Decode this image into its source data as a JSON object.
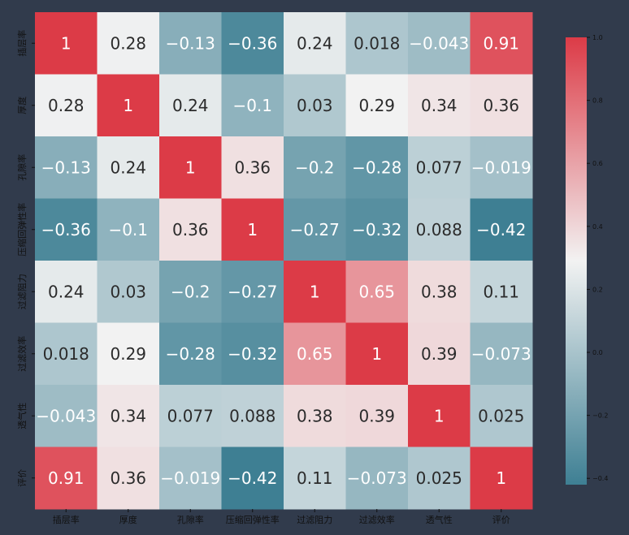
{
  "chart_data": {
    "type": "heatmap",
    "title": "",
    "xlabel": "",
    "ylabel": "",
    "labels": [
      "插层率",
      "厚度",
      "孔隙率",
      "压缩回弹性率",
      "过滤阻力",
      "过滤效率",
      "透气性",
      "评价"
    ],
    "matrix": [
      [
        1,
        0.28,
        -0.13,
        -0.36,
        0.24,
        0.018,
        -0.043,
        0.91
      ],
      [
        0.28,
        1,
        0.24,
        -0.1,
        0.03,
        0.29,
        0.34,
        0.36
      ],
      [
        -0.13,
        0.24,
        1,
        0.36,
        -0.2,
        -0.28,
        0.077,
        -0.019
      ],
      [
        -0.36,
        -0.1,
        0.36,
        1,
        -0.27,
        -0.32,
        0.088,
        -0.42
      ],
      [
        0.24,
        0.03,
        -0.2,
        -0.27,
        1,
        0.65,
        0.38,
        0.11
      ],
      [
        0.018,
        0.29,
        -0.28,
        -0.32,
        0.65,
        1,
        0.39,
        -0.073
      ],
      [
        -0.043,
        0.34,
        0.077,
        0.088,
        0.38,
        0.39,
        1,
        0.025
      ],
      [
        0.91,
        0.36,
        -0.019,
        -0.42,
        0.11,
        -0.073,
        0.025,
        1
      ]
    ],
    "annotation_labels": [
      [
        "1",
        "0.28",
        "−0.13",
        "−0.36",
        "0.24",
        "0.018",
        "−0.043",
        "0.91"
      ],
      [
        "0.28",
        "1",
        "0.24",
        "−0.1",
        "0.03",
        "0.29",
        "0.34",
        "0.36"
      ],
      [
        "−0.13",
        "0.24",
        "1",
        "0.36",
        "−0.2",
        "−0.28",
        "0.077",
        "−0.019"
      ],
      [
        "−0.36",
        "−0.1",
        "0.36",
        "1",
        "−0.27",
        "−0.32",
        "0.088",
        "−0.42"
      ],
      [
        "0.24",
        "0.03",
        "−0.2",
        "−0.27",
        "1",
        "0.65",
        "0.38",
        "0.11"
      ],
      [
        "0.018",
        "0.29",
        "−0.28",
        "−0.32",
        "0.65",
        "1",
        "0.39",
        "−0.073"
      ],
      [
        "−0.043",
        "0.34",
        "0.077",
        "0.088",
        "0.38",
        "0.39",
        "1",
        "0.025"
      ],
      [
        "0.91",
        "0.36",
        "−0.019",
        "−0.42",
        "0.11",
        "−0.073",
        "0.025",
        "1"
      ]
    ],
    "colorbar": {
      "min": -0.42,
      "max": 1.0,
      "ticks": [
        1.0,
        0.8,
        0.6,
        0.4,
        0.2,
        0.0,
        -0.2,
        -0.4
      ],
      "tick_labels": [
        "1.0",
        "0.8",
        "0.6",
        "0.4",
        "0.2",
        "0.0",
        "−0.2",
        "−0.4"
      ]
    },
    "colors": {
      "low": "#3e7f93",
      "mid": "#f2f2f2",
      "high": "#dc3b47",
      "background": "#313b4c",
      "text_light": "#ffffff",
      "text_dark": "#2b2b2b"
    }
  }
}
